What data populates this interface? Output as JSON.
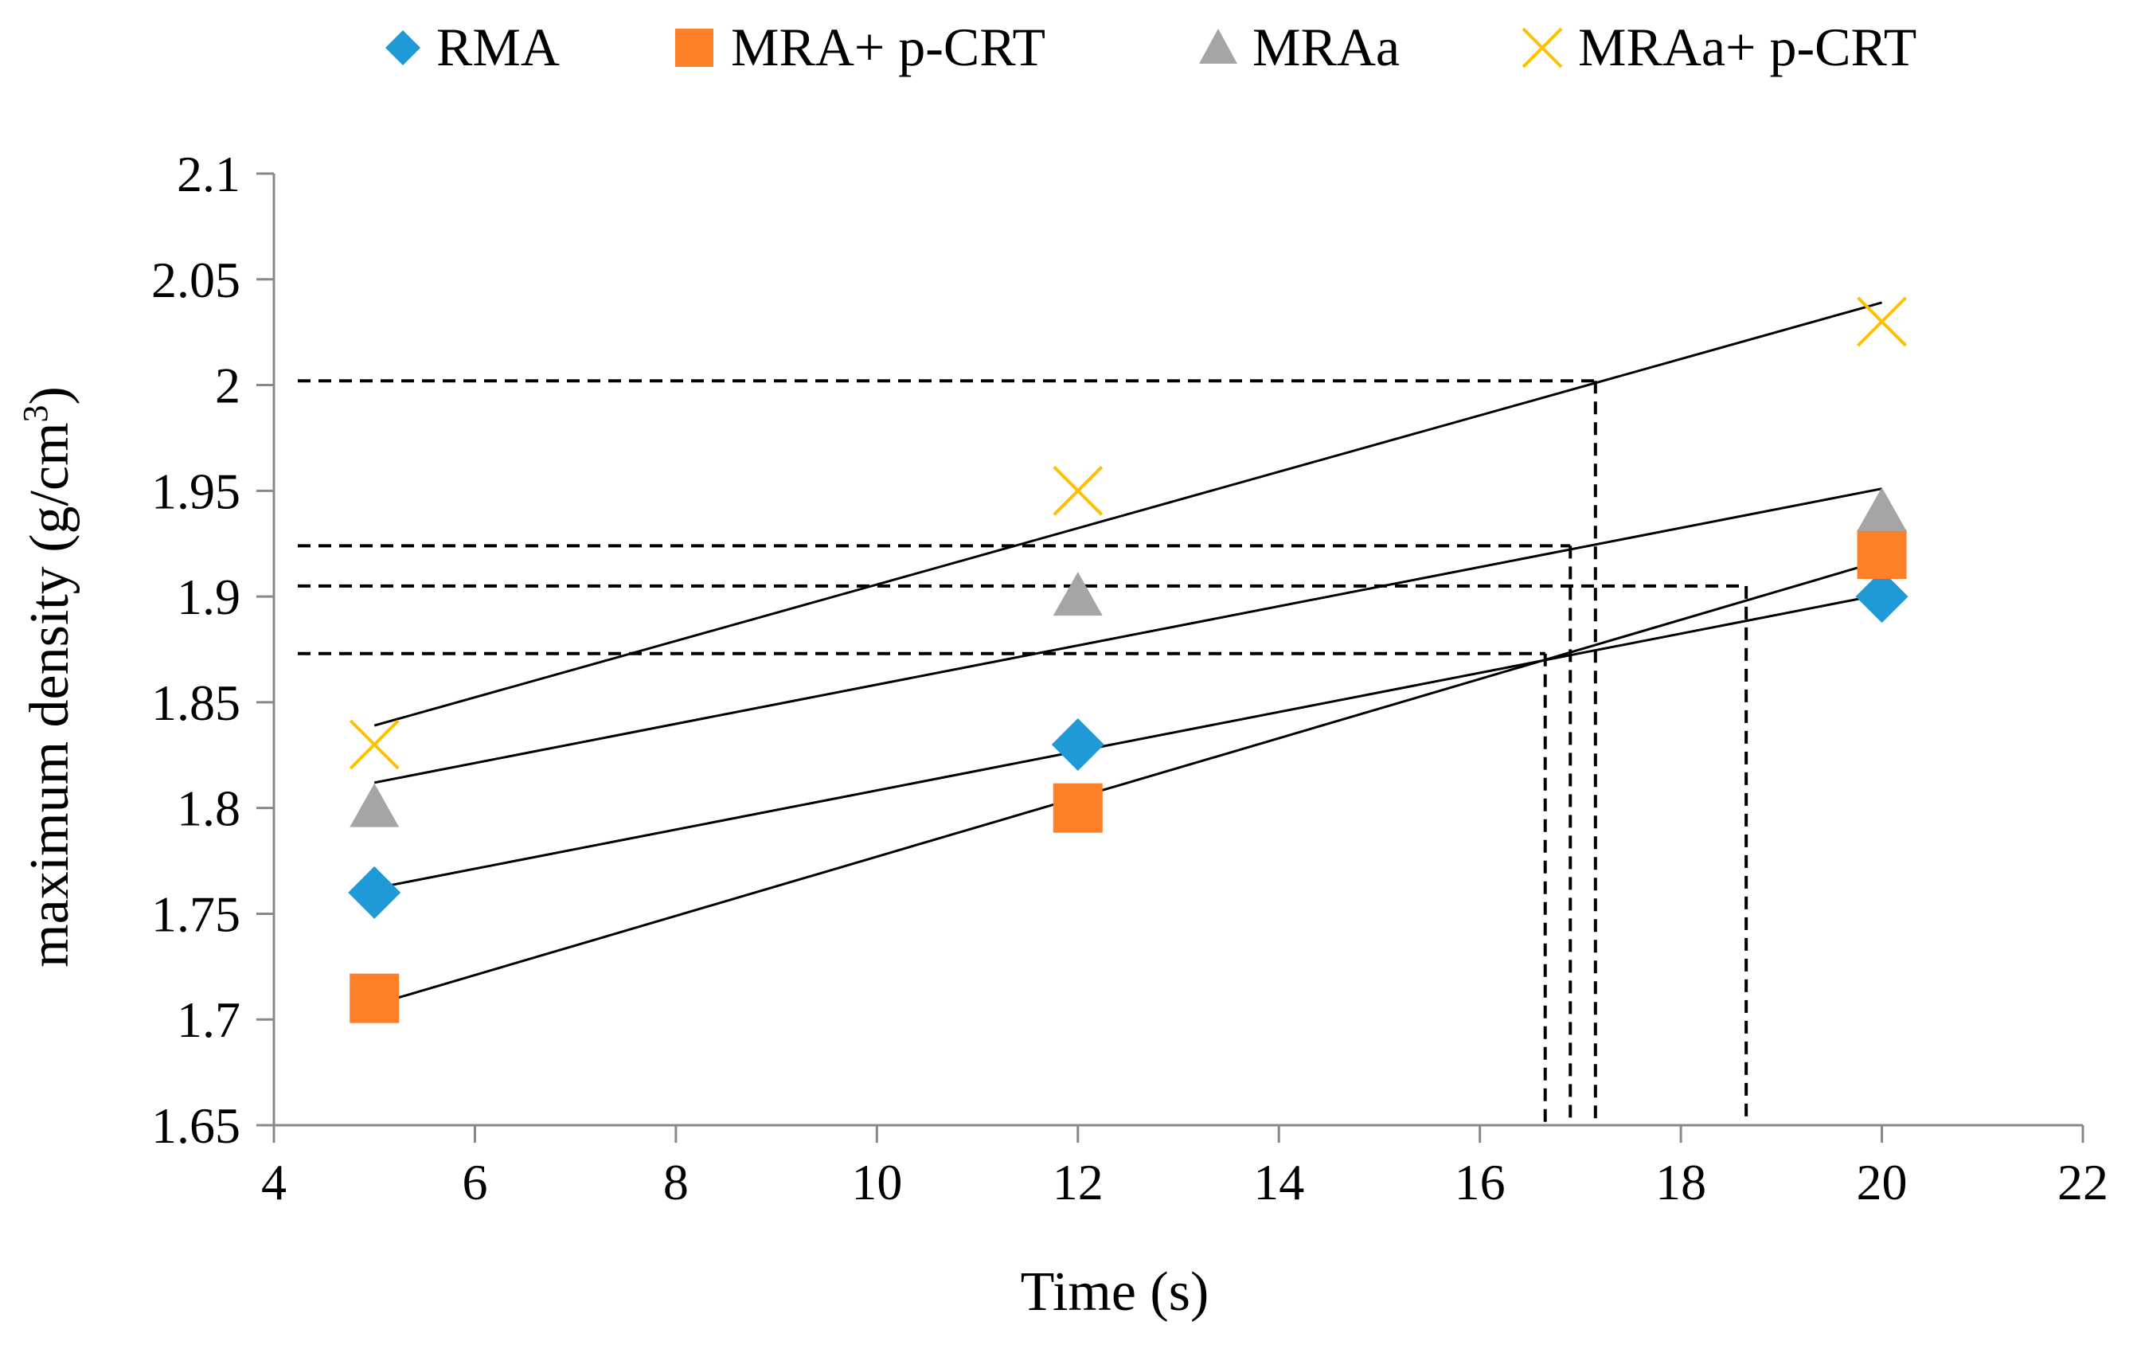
{
  "chart_data": {
    "type": "scatter",
    "title": "",
    "xlabel": "Time  (s)",
    "ylabel": "maximum density (g/cm",
    "ylabel_sup": "3",
    "ylabel_close": ")",
    "xlim": [
      4,
      22
    ],
    "ylim": [
      1.65,
      2.1
    ],
    "xticks": [
      4,
      6,
      8,
      10,
      12,
      14,
      16,
      18,
      20,
      22
    ],
    "xtick_labels": [
      "4",
      "6",
      "8",
      "10",
      "12",
      "14",
      "16",
      "18",
      "20",
      "22"
    ],
    "yticks": [
      1.65,
      1.7,
      1.75,
      1.8,
      1.85,
      1.9,
      1.95,
      2.0,
      2.05,
      2.1
    ],
    "ytick_labels": [
      "1.65",
      "1.7",
      "1.75",
      "1.8",
      "1.85",
      "1.9",
      "1.95",
      "2",
      "2.05",
      "2.1"
    ],
    "grid": false,
    "legend_position": "top",
    "series": [
      {
        "name": "RMA",
        "marker": "diamond",
        "color": "#1f9ad6",
        "x": [
          5,
          12,
          20
        ],
        "y": [
          1.76,
          1.83,
          1.9
        ],
        "trend": {
          "x": [
            5,
            20
          ],
          "y": [
            1.762,
            1.901
          ]
        }
      },
      {
        "name": "MRA+ p-CRT",
        "marker": "square",
        "color": "#fd7f28",
        "x": [
          5,
          12,
          20
        ],
        "y": [
          1.71,
          1.8,
          1.92
        ],
        "trend": {
          "x": [
            5,
            20
          ],
          "y": [
            1.707,
            1.917
          ]
        }
      },
      {
        "name": "MRAa",
        "marker": "triangle",
        "color": "#a5a5a5",
        "x": [
          5,
          12,
          20
        ],
        "y": [
          1.8,
          1.9,
          1.94
        ],
        "trend": {
          "x": [
            5,
            20
          ],
          "y": [
            1.812,
            1.951
          ]
        }
      },
      {
        "name": "MRAa+ p-CRT",
        "marker": "cross",
        "color": "#ffc000",
        "x": [
          5,
          12,
          20
        ],
        "y": [
          1.83,
          1.95,
          2.03
        ],
        "trend": {
          "x": [
            5,
            20
          ],
          "y": [
            1.839,
            2.039
          ]
        }
      }
    ],
    "reference_lines": [
      {
        "y": 2.002,
        "x": 17.15
      },
      {
        "y": 1.924,
        "x": 16.9
      },
      {
        "y": 1.905,
        "x": 18.65
      },
      {
        "y": 1.873,
        "x": 16.65
      }
    ]
  }
}
